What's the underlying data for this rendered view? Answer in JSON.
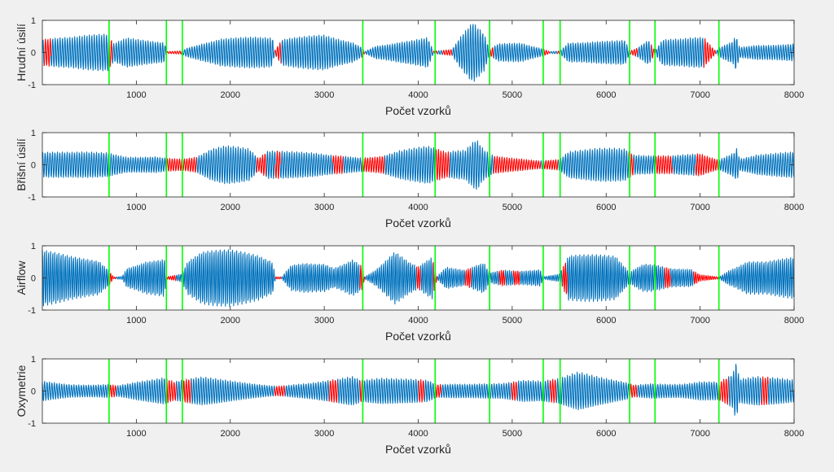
{
  "figure": {
    "background": "#f0f0f0",
    "axes_background": "#ffffff",
    "axes_color": "#262626",
    "signal_color": "#0072bd",
    "event_color": "#ff0000",
    "marker_color": "#00ff00"
  },
  "chart_data": [
    {
      "type": "line",
      "ylabel": "Hrudní úsilí",
      "xlabel": "Počet vzorků",
      "xlim": [
        0,
        8000
      ],
      "ylim": [
        -1,
        1
      ],
      "xticks": [
        1000,
        2000,
        3000,
        4000,
        5000,
        6000,
        7000,
        8000
      ],
      "yticks": [
        -1,
        0,
        1
      ],
      "grid": false,
      "vertical_markers": [
        710,
        1320,
        1490,
        3410,
        4180,
        4760,
        5330,
        5510,
        6250,
        6520,
        7200
      ],
      "event_segments": [
        [
          20,
          90
        ],
        [
          710,
          740
        ],
        [
          1320,
          1480
        ],
        [
          2470,
          2540
        ],
        [
          3400,
          3430
        ],
        [
          4160,
          4200
        ],
        [
          4260,
          4360
        ],
        [
          4760,
          4800
        ],
        [
          5330,
          5400
        ],
        [
          5480,
          5510
        ],
        [
          6250,
          6330
        ],
        [
          6480,
          6520
        ],
        [
          7040,
          7170
        ]
      ],
      "envelope": [
        [
          0,
          0.55
        ],
        [
          300,
          0.5
        ],
        [
          700,
          0.6
        ],
        [
          760,
          0.3
        ],
        [
          900,
          0.55
        ],
        [
          1300,
          0.55
        ],
        [
          1320,
          0.05
        ],
        [
          1480,
          0.1
        ],
        [
          1550,
          0.3
        ],
        [
          1700,
          0.5
        ],
        [
          1900,
          0.65
        ],
        [
          2200,
          0.55
        ],
        [
          2450,
          0.45
        ],
        [
          2470,
          0.05
        ],
        [
          2550,
          0.4
        ],
        [
          2800,
          0.55
        ],
        [
          3000,
          0.7
        ],
        [
          3300,
          0.55
        ],
        [
          3400,
          0.3
        ],
        [
          3430,
          0.05
        ],
        [
          3550,
          0.4
        ],
        [
          3800,
          0.55
        ],
        [
          4100,
          0.6
        ],
        [
          4160,
          0.05
        ],
        [
          4360,
          0.1
        ],
        [
          4450,
          0.5
        ],
        [
          4580,
          0.95
        ],
        [
          4700,
          0.6
        ],
        [
          4760,
          0.1
        ],
        [
          4850,
          0.3
        ],
        [
          5100,
          0.4
        ],
        [
          5330,
          0.2
        ],
        [
          5400,
          0.05
        ],
        [
          5510,
          0.1
        ],
        [
          5600,
          0.6
        ],
        [
          5900,
          0.55
        ],
        [
          6200,
          0.45
        ],
        [
          6250,
          0.05
        ],
        [
          6330,
          0.15
        ],
        [
          6450,
          0.4
        ],
        [
          6520,
          0.05
        ],
        [
          6600,
          0.4
        ],
        [
          6800,
          0.45
        ],
        [
          7040,
          0.6
        ],
        [
          7170,
          0.05
        ],
        [
          7200,
          0.2
        ],
        [
          7350,
          0.6
        ],
        [
          7380,
          1.0
        ],
        [
          7420,
          0.3
        ],
        [
          7600,
          0.45
        ],
        [
          8000,
          0.4
        ]
      ]
    },
    {
      "type": "line",
      "ylabel": "Břišní úsilí",
      "xlabel": "Počet vzorků",
      "xlim": [
        0,
        8000
      ],
      "ylim": [
        -1,
        1
      ],
      "xticks": [
        1000,
        2000,
        3000,
        4000,
        5000,
        6000,
        7000,
        8000
      ],
      "yticks": [
        -1,
        0,
        1
      ],
      "grid": false,
      "vertical_markers": [
        710,
        1320,
        1490,
        3410,
        4180,
        4760,
        5330,
        5510,
        6250,
        6520,
        7200
      ],
      "event_segments": [
        [
          1320,
          1640
        ],
        [
          2280,
          2380
        ],
        [
          2480,
          2530
        ],
        [
          3090,
          3200
        ],
        [
          3400,
          3640
        ],
        [
          4180,
          4330
        ],
        [
          4800,
          5300
        ],
        [
          5340,
          5490
        ],
        [
          6240,
          6290
        ],
        [
          6520,
          6700
        ],
        [
          6950,
          7200
        ]
      ],
      "envelope": [
        [
          0,
          0.4
        ],
        [
          300,
          0.4
        ],
        [
          700,
          0.5
        ],
        [
          900,
          0.4
        ],
        [
          1200,
          0.5
        ],
        [
          1320,
          0.4
        ],
        [
          1500,
          0.3
        ],
        [
          1640,
          0.35
        ],
        [
          1800,
          0.6
        ],
        [
          1950,
          0.65
        ],
        [
          2200,
          0.5
        ],
        [
          2300,
          0.2
        ],
        [
          2400,
          0.45
        ],
        [
          2600,
          0.5
        ],
        [
          2900,
          0.6
        ],
        [
          3200,
          0.55
        ],
        [
          3400,
          0.4
        ],
        [
          3600,
          0.4
        ],
        [
          3800,
          0.55
        ],
        [
          4100,
          0.6
        ],
        [
          4300,
          0.4
        ],
        [
          4500,
          0.5
        ],
        [
          4620,
          0.95
        ],
        [
          4700,
          0.6
        ],
        [
          4800,
          0.4
        ],
        [
          5100,
          0.35
        ],
        [
          5300,
          0.25
        ],
        [
          5500,
          0.3
        ],
        [
          5600,
          0.65
        ],
        [
          5900,
          0.6
        ],
        [
          6200,
          0.5
        ],
        [
          6300,
          0.3
        ],
        [
          6500,
          0.3
        ],
        [
          6700,
          0.35
        ],
        [
          6900,
          0.5
        ],
        [
          7000,
          0.6
        ],
        [
          7200,
          0.3
        ],
        [
          7360,
          0.75
        ],
        [
          7390,
          1.0
        ],
        [
          7420,
          0.35
        ],
        [
          7600,
          0.5
        ],
        [
          8000,
          0.45
        ]
      ]
    },
    {
      "type": "line",
      "ylabel": "Airflow",
      "xlabel": "Počet vzorků",
      "xlim": [
        0,
        8000
      ],
      "ylim": [
        -1,
        1
      ],
      "xticks": [
        1000,
        2000,
        3000,
        4000,
        5000,
        6000,
        7000,
        8000
      ],
      "yticks": [
        -1,
        0,
        1
      ],
      "grid": false,
      "vertical_markers": [
        710,
        1320,
        1490,
        3410,
        4180,
        4760,
        5330,
        5510,
        6250,
        6520,
        7200
      ],
      "event_segments": [
        [
          710,
          780
        ],
        [
          1320,
          1420
        ],
        [
          2480,
          2540
        ],
        [
          3380,
          3430
        ],
        [
          3980,
          4020
        ],
        [
          4160,
          4200
        ],
        [
          4500,
          4560
        ],
        [
          4860,
          4920
        ],
        [
          5010,
          5080
        ],
        [
          5530,
          5580
        ],
        [
          6620,
          6680
        ],
        [
          6930,
          7200
        ]
      ],
      "envelope": [
        [
          0,
          0.9
        ],
        [
          300,
          0.85
        ],
        [
          600,
          0.9
        ],
        [
          700,
          0.5
        ],
        [
          760,
          0.05
        ],
        [
          850,
          0.1
        ],
        [
          900,
          0.6
        ],
        [
          1100,
          0.9
        ],
        [
          1300,
          0.85
        ],
        [
          1320,
          0.05
        ],
        [
          1480,
          0.15
        ],
        [
          1550,
          0.6
        ],
        [
          1700,
          0.85
        ],
        [
          2000,
          0.9
        ],
        [
          2300,
          0.85
        ],
        [
          2450,
          0.7
        ],
        [
          2480,
          0.05
        ],
        [
          2550,
          0.05
        ],
        [
          2650,
          0.7
        ],
        [
          2800,
          0.9
        ],
        [
          3000,
          0.85
        ],
        [
          3100,
          0.55
        ],
        [
          3300,
          0.85
        ],
        [
          3400,
          0.5
        ],
        [
          3430,
          0.05
        ],
        [
          3550,
          0.3
        ],
        [
          3750,
          0.85
        ],
        [
          3900,
          0.5
        ],
        [
          4000,
          0.35
        ],
        [
          4150,
          0.7
        ],
        [
          4200,
          0.05
        ],
        [
          4300,
          0.4
        ],
        [
          4500,
          0.35
        ],
        [
          4700,
          0.85
        ],
        [
          4760,
          0.3
        ],
        [
          4900,
          0.5
        ],
        [
          5100,
          0.4
        ],
        [
          5300,
          0.4
        ],
        [
          5330,
          0.05
        ],
        [
          5400,
          0.1
        ],
        [
          5500,
          0.15
        ],
        [
          5600,
          0.8
        ],
        [
          5800,
          0.75
        ],
        [
          6100,
          0.7
        ],
        [
          6250,
          0.2
        ],
        [
          6400,
          0.55
        ],
        [
          6520,
          0.6
        ],
        [
          6700,
          0.5
        ],
        [
          6900,
          0.55
        ],
        [
          7000,
          0.2
        ],
        [
          7200,
          0.05
        ],
        [
          7300,
          0.35
        ],
        [
          7500,
          0.65
        ],
        [
          7700,
          0.55
        ],
        [
          8000,
          0.65
        ]
      ]
    },
    {
      "type": "line",
      "ylabel": "Oxymetrie",
      "xlabel": "Počet vzorků",
      "xlim": [
        0,
        8000
      ],
      "ylim": [
        -1,
        1
      ],
      "xticks": [
        1000,
        2000,
        3000,
        4000,
        5000,
        6000,
        7000,
        8000
      ],
      "yticks": [
        -1,
        0,
        1
      ],
      "grid": false,
      "vertical_markers": [
        710,
        1320,
        1490,
        3410,
        4180,
        4760,
        5330,
        5510,
        6250,
        6520,
        7200
      ],
      "event_segments": [
        [
          710,
          780
        ],
        [
          1320,
          1420
        ],
        [
          1490,
          1580
        ],
        [
          2470,
          2580
        ],
        [
          3050,
          3140
        ],
        [
          3380,
          3410
        ],
        [
          4000,
          4060
        ],
        [
          4180,
          4240
        ],
        [
          4990,
          5050
        ],
        [
          5400,
          5470
        ],
        [
          6250,
          6330
        ],
        [
          7200,
          7300
        ],
        [
          7650,
          7720
        ]
      ],
      "envelope": [
        [
          0,
          0.4
        ],
        [
          300,
          0.35
        ],
        [
          700,
          0.4
        ],
        [
          800,
          0.3
        ],
        [
          1000,
          0.4
        ],
        [
          1300,
          0.45
        ],
        [
          1400,
          0.3
        ],
        [
          1500,
          0.35
        ],
        [
          1700,
          0.45
        ],
        [
          2000,
          0.4
        ],
        [
          2300,
          0.35
        ],
        [
          2500,
          0.3
        ],
        [
          2700,
          0.4
        ],
        [
          3000,
          0.45
        ],
        [
          3300,
          0.5
        ],
        [
          3400,
          0.35
        ],
        [
          3600,
          0.4
        ],
        [
          3800,
          0.4
        ],
        [
          4100,
          0.45
        ],
        [
          4200,
          0.3
        ],
        [
          4400,
          0.4
        ],
        [
          4700,
          0.45
        ],
        [
          4900,
          0.4
        ],
        [
          5100,
          0.45
        ],
        [
          5300,
          0.35
        ],
        [
          5500,
          0.4
        ],
        [
          5700,
          0.6
        ],
        [
          5900,
          0.5
        ],
        [
          6200,
          0.4
        ],
        [
          6300,
          0.3
        ],
        [
          6500,
          0.45
        ],
        [
          6800,
          0.4
        ],
        [
          7000,
          0.45
        ],
        [
          7200,
          0.35
        ],
        [
          7350,
          0.6
        ],
        [
          7380,
          1.0
        ],
        [
          7420,
          0.4
        ],
        [
          7600,
          0.45
        ],
        [
          8000,
          0.4
        ]
      ]
    }
  ]
}
